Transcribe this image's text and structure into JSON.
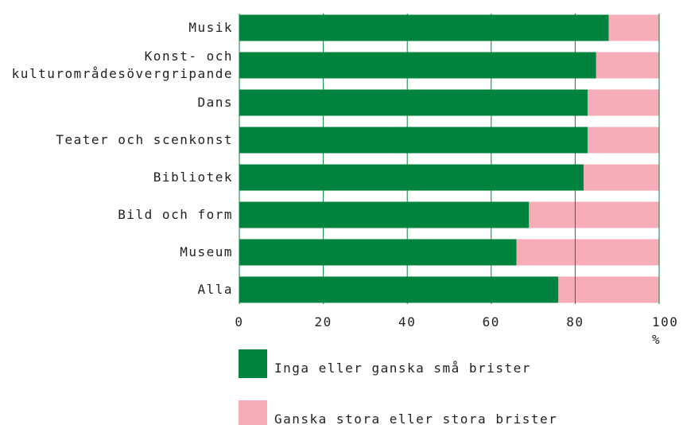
{
  "chart_data": {
    "type": "stacked_barh",
    "categories": [
      "Musik",
      "Konst- och\nkulturområdesövergripande",
      "Dans",
      "Teater och scenkonst",
      "Bibliotek",
      "Bild och form",
      "Museum",
      "Alla"
    ],
    "series": [
      {
        "name": "Inga eller ganska små brister",
        "color": "#00843d",
        "values": [
          88,
          85,
          83,
          83,
          82,
          69,
          66,
          76
        ]
      },
      {
        "name": "Ganska stora eller stora brister",
        "color": "#f7adb9",
        "values": [
          12,
          15,
          17,
          17,
          18,
          31,
          34,
          24
        ]
      }
    ],
    "xlim": [
      0,
      100
    ],
    "xticks": [
      0,
      20,
      40,
      60,
      80,
      {
        "value": 100,
        "label": "100 %"
      }
    ],
    "grid": true
  }
}
